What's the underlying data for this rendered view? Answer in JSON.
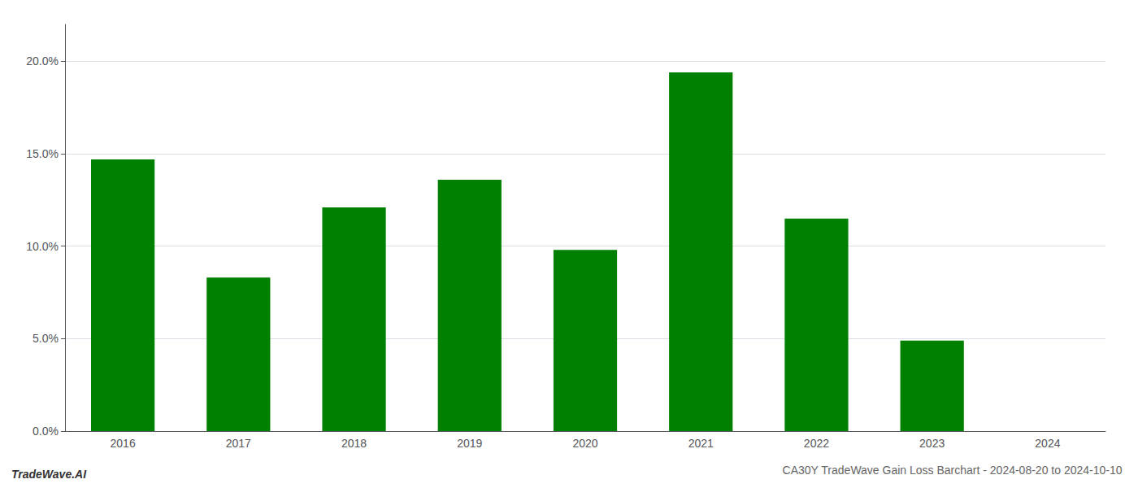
{
  "chart_data": {
    "type": "bar",
    "title": "CA30Y TradeWave Gain Loss Barchart - 2024-08-20 to 2024-10-10",
    "annotations": [
      "TradeWave.AI"
    ],
    "categories": [
      "2016",
      "2017",
      "2018",
      "2019",
      "2020",
      "2021",
      "2022",
      "2023",
      "2024"
    ],
    "values": [
      0.147,
      0.083,
      0.121,
      0.136,
      0.098,
      0.194,
      0.115,
      0.049,
      0.0
    ],
    "color": "#008000",
    "ylim": [
      0.0,
      0.22
    ],
    "yticks": [
      {
        "value": 0.0,
        "label": "0.0%"
      },
      {
        "value": 0.05,
        "label": "5.0%"
      },
      {
        "value": 0.1,
        "label": "10.0%"
      },
      {
        "value": 0.15,
        "label": "15.0%"
      },
      {
        "value": 0.2,
        "label": "20.0%"
      }
    ],
    "grid": true
  }
}
